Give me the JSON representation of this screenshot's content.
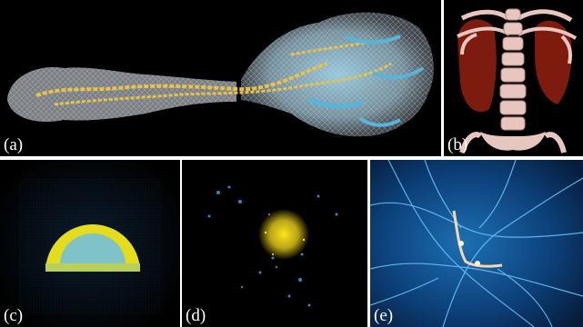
{
  "panels": {
    "a": {
      "label": "(a)",
      "subject": "protein-molecule-render",
      "colors": {
        "surface": "#b8bcc2",
        "helix_yellow": "#e8c24a",
        "helix_blue": "#5ab4d8"
      }
    },
    "b": {
      "label": "(b)",
      "subject": "spine-ribcage-volume-render",
      "colors": {
        "bone": "#e8c6c0",
        "tissue": "#8a1e0f"
      }
    },
    "c": {
      "label": "(c)",
      "subject": "half-sphere-particle-render",
      "colors": {
        "shell": "#e6dc1e",
        "core": "#7fc3c8"
      }
    },
    "d": {
      "label": "(d)",
      "subject": "particle-cluster-render",
      "colors": {
        "core": "#ffe619",
        "sparkle": "#2f86c7"
      }
    },
    "e": {
      "label": "(e)",
      "subject": "cosmic-web-filament-render",
      "colors": {
        "web": "#2e9be8",
        "filament_hot": "#f3d7b0"
      }
    }
  }
}
